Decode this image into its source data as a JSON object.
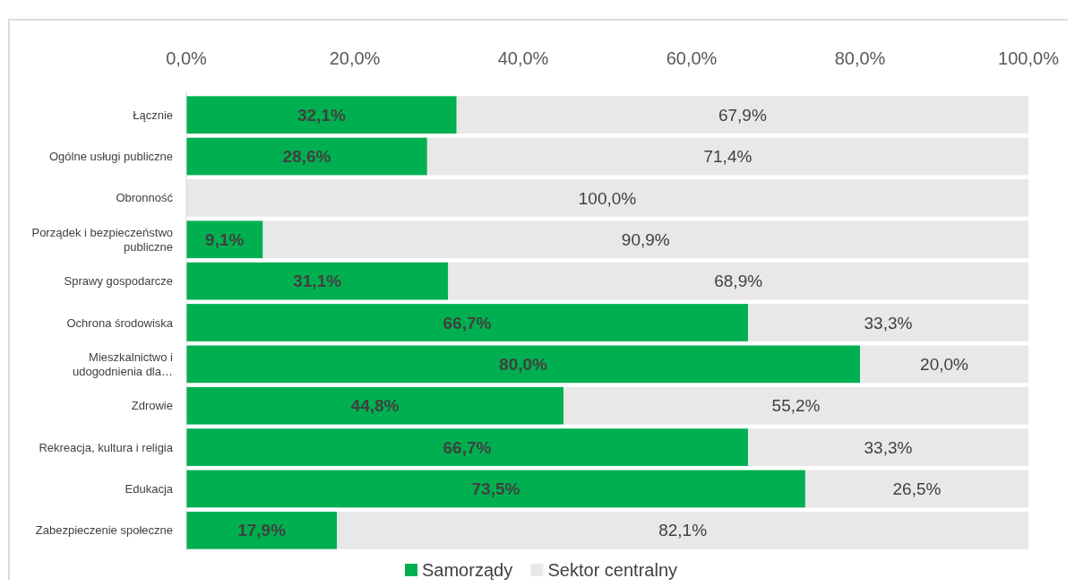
{
  "chart_data": {
    "type": "bar",
    "orientation": "horizontal",
    "stacked": true,
    "categories": [
      "Łącznie",
      "Ogólne usługi publiczne",
      "Obronność",
      "Porządek i bezpieczeństwo publiczne",
      "Sprawy gospodarcze",
      "Ochrona środowiska",
      "Mieszkalnictwo i udogodnienia dla…",
      "Zdrowie",
      "Rekreacja, kultura i religia",
      "Edukacja",
      "Zabezpieczenie społeczne"
    ],
    "series": [
      {
        "name": "Samorządy",
        "color": "#00b050",
        "values": [
          32.1,
          28.6,
          0,
          9.1,
          31.1,
          66.7,
          80.0,
          44.8,
          66.7,
          73.5,
          17.9
        ],
        "value_labels": [
          "32,1%",
          "28,6%",
          null,
          "9,1%",
          "31,1%",
          "66,7%",
          "80,0%",
          "44,8%",
          "66,7%",
          "73,5%",
          "17,9%"
        ]
      },
      {
        "name": "Sektor centralny",
        "color": "#e8e8e8",
        "values": [
          67.9,
          71.4,
          100.0,
          90.9,
          68.9,
          33.3,
          20.0,
          55.2,
          33.3,
          26.5,
          82.1
        ],
        "value_labels": [
          "67,9%",
          "71,4%",
          "100,0%",
          "90,9%",
          "68,9%",
          "33,3%",
          "20,0%",
          "55,2%",
          "33,3%",
          "26,5%",
          "82,1%"
        ]
      }
    ],
    "xlim": [
      0,
      100
    ],
    "xticks": [
      {
        "value": 0,
        "label": "0,0%"
      },
      {
        "value": 20,
        "label": "20,0%"
      },
      {
        "value": 40,
        "label": "40,0%"
      },
      {
        "value": 60,
        "label": "60,0%"
      },
      {
        "value": 80,
        "label": "80,0%"
      },
      {
        "value": 100,
        "label": "100,0%"
      }
    ],
    "grid": false,
    "legend": "bottom"
  }
}
